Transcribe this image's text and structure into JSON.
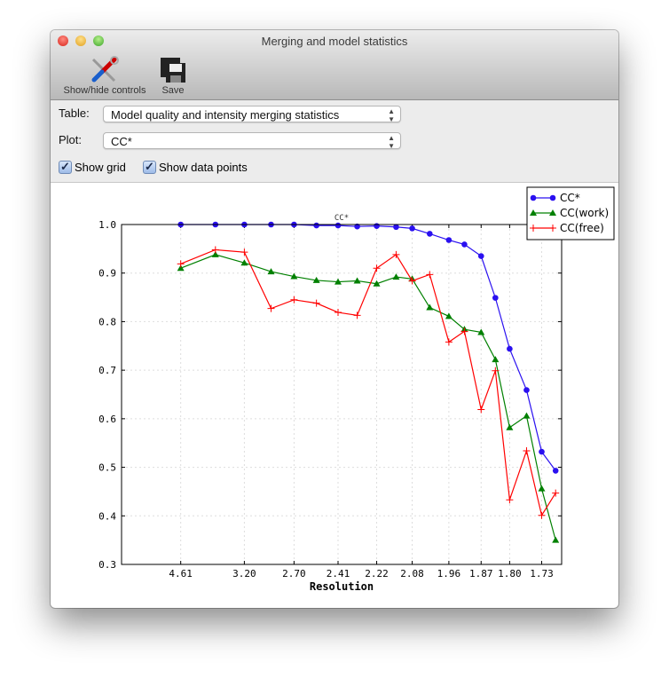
{
  "window": {
    "title": "Merging and model statistics"
  },
  "toolbar": {
    "show_hide_label": "Show/hide controls",
    "save_label": "Save"
  },
  "controls": {
    "table_label": "Table:",
    "table_value": "Model quality and intensity merging statistics",
    "plot_label": "Plot:",
    "plot_value": "CC*",
    "show_grid_label": "Show grid",
    "show_grid_checked": true,
    "show_points_label": "Show data points",
    "show_points_checked": true
  },
  "chart_data": {
    "type": "line",
    "title": "CC*",
    "xlabel": "Resolution",
    "ylabel": "",
    "x_scale": "reciprocal-squared (1/d^2)",
    "xlim_inv_d2": [
      0,
      0.35
    ],
    "ylim": [
      0.3,
      1.0
    ],
    "grid": true,
    "legend_position": "top-right",
    "xticks": [
      4.61,
      3.2,
      2.7,
      2.41,
      2.22,
      2.08,
      1.96,
      1.87,
      1.8,
      1.73
    ],
    "xtick_labels": [
      "4.61",
      "3.20",
      "2.70",
      "2.41",
      "2.22",
      "2.08",
      "1.96",
      "1.87",
      "1.80",
      "1.73"
    ],
    "yticks": [
      "0.3",
      "0.4",
      "0.5",
      "0.6",
      "0.7",
      "0.8",
      "0.9",
      "1.0"
    ],
    "x": [
      4.61,
      3.66,
      3.2,
      2.9,
      2.7,
      2.54,
      2.41,
      2.31,
      2.22,
      2.14,
      2.08,
      2.02,
      1.96,
      1.915,
      1.87,
      1.834,
      1.8,
      1.762,
      1.73,
      1.702
    ],
    "series": [
      {
        "name": "CC*",
        "color": "#2a10f0",
        "marker": "circle",
        "values": [
          1.0,
          1.0,
          1.0,
          1.0,
          1.0,
          0.998,
          0.998,
          0.996,
          0.997,
          0.995,
          0.992,
          0.981,
          0.968,
          0.959,
          0.935,
          0.849,
          0.744,
          0.659,
          0.532,
          0.493
        ]
      },
      {
        "name": "CC(work)",
        "color": "#008000",
        "marker": "triangle",
        "values": [
          0.91,
          0.938,
          0.921,
          0.903,
          0.893,
          0.885,
          0.882,
          0.884,
          0.878,
          0.892,
          0.888,
          0.829,
          0.811,
          0.784,
          0.778,
          0.722,
          0.582,
          0.606,
          0.456,
          0.35
        ]
      },
      {
        "name": "CC(free)",
        "color": "#ff0000",
        "marker": "plus",
        "values": [
          0.919,
          0.948,
          0.943,
          0.827,
          0.845,
          0.838,
          0.819,
          0.813,
          0.91,
          0.938,
          0.884,
          0.897,
          0.758,
          0.78,
          0.619,
          0.699,
          0.433,
          0.534,
          0.401,
          0.447
        ]
      }
    ]
  }
}
